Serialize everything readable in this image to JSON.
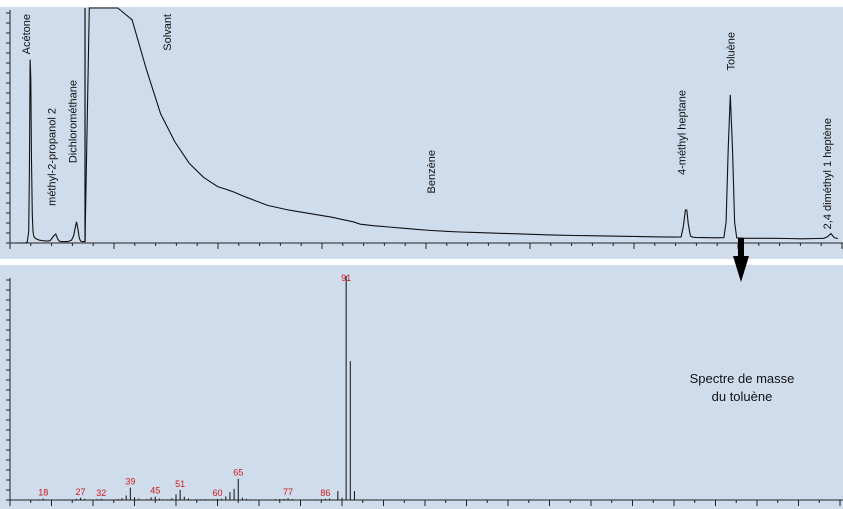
{
  "chart_data": [
    {
      "type": "line",
      "title": "",
      "xlabel": "",
      "ylabel": "",
      "grid": false,
      "x": [
        0,
        1.1,
        1.3,
        1.5,
        1.6,
        1.7,
        1.8,
        1.9,
        2.0,
        2.1,
        2.2,
        2.4,
        2.7,
        3.0,
        3.5,
        4.0,
        4.5,
        5.0,
        5.3,
        5.6,
        5.8,
        6.0,
        6.5,
        7.0,
        7.5,
        7.8,
        8.0,
        8.2,
        8.4,
        8.6,
        8.8,
        9.0,
        9.2,
        9.4,
        10,
        11,
        12,
        13,
        14,
        16,
        18,
        20,
        22,
        24,
        26,
        27,
        28,
        29,
        30,
        32,
        35,
        38,
        40,
        44,
        47,
        48,
        50,
        52,
        54,
        56,
        58,
        60,
        62,
        64,
        66,
        68,
        70,
        72,
        74,
        76,
        78,
        80,
        82,
        84,
        86,
        88,
        90,
        92,
        93,
        93.3,
        93.6,
        93.8,
        94.0,
        94.3,
        94.6,
        95,
        96,
        98,
        99,
        99.3,
        99.6,
        99.9,
        100.2,
        100.5,
        100.8,
        101,
        101.5,
        102,
        104,
        106,
        108,
        110,
        112,
        113,
        113.5,
        114,
        114.5,
        115
      ],
      "y": [
        0,
        0.0,
        0.5,
        5,
        30,
        78,
        70,
        35,
        12,
        5,
        3,
        2.0,
        1.6,
        1.2,
        1.0,
        0.8,
        1.0,
        3.0,
        3.8,
        1.5,
        0.8,
        0.6,
        0.6,
        0.6,
        1.2,
        3,
        6,
        9,
        6,
        2,
        0.8,
        0.6,
        0.6,
        0.6,
        100,
        100,
        100,
        100,
        100,
        95,
        74,
        55,
        43,
        34,
        28,
        26,
        24,
        23,
        22,
        19.5,
        16,
        14,
        13,
        11,
        9,
        8,
        7.3,
        6.8,
        6.3,
        5.8,
        5.3,
        5.0,
        4.7,
        4.5,
        4.3,
        4.1,
        3.9,
        3.7,
        3.5,
        3.3,
        3.2,
        3.1,
        3.0,
        2.9,
        2.8,
        2.7,
        2.6,
        2.5,
        2.6,
        7,
        14,
        14,
        8,
        3,
        2.5,
        2.4,
        2.3,
        2.2,
        2.3,
        9,
        40,
        63,
        40,
        9,
        2.2,
        2.1,
        2.1,
        2.0,
        2.0,
        2.0,
        1.9,
        1.8,
        1.9,
        2.0,
        2.6,
        4.0,
        2.2,
        1.9
      ],
      "xlim": [
        0,
        115
      ],
      "ylim": [
        0,
        100
      ],
      "peak_labels": [
        {
          "text": "Acétone",
          "x": 1.7
        },
        {
          "text": "méthyl-2-propanol 2",
          "x": 5.3
        },
        {
          "text": "Dichlorométhane",
          "x": 8.2
        },
        {
          "text": "Solvant",
          "x": 21.5
        },
        {
          "text": "Benzène",
          "x": 58.5
        },
        {
          "text": "4-méthyl heptane",
          "x": 93.6
        },
        {
          "text": "Toluène",
          "x": 100.5
        },
        {
          "text": "2,4 diméthyl 1 heptène",
          "x": 114
        }
      ]
    },
    {
      "type": "bar",
      "title": "Spectre de masse du toluène",
      "xlabel": "",
      "ylabel": "",
      "grid": false,
      "x": [
        17,
        18,
        26,
        27,
        28,
        31,
        32,
        36,
        37,
        38,
        39,
        40,
        41,
        43,
        44,
        45,
        46,
        47,
        48,
        49,
        50,
        51,
        52,
        53,
        55,
        56,
        57,
        58,
        59,
        60,
        61,
        62,
        63,
        64,
        65,
        66,
        67,
        68,
        74,
        75,
        76,
        77,
        78,
        84,
        85,
        86,
        87,
        89,
        90,
        91,
        92,
        93
      ],
      "values": [
        0.3,
        0.6,
        0.5,
        1.0,
        0.5,
        0.4,
        0.5,
        0.4,
        0.8,
        2.0,
        5.5,
        1.2,
        0.6,
        0.4,
        1.2,
        1.5,
        0.6,
        0.3,
        0.3,
        0.8,
        2.5,
        4.5,
        1.5,
        0.7,
        0.3,
        0.3,
        0.4,
        0.3,
        0.3,
        0.5,
        0.6,
        1.6,
        3.5,
        5.0,
        9.5,
        1.0,
        0.5,
        0.3,
        0.4,
        0.4,
        0.5,
        0.8,
        0.4,
        0.3,
        0.3,
        0.5,
        0.6,
        4.0,
        1.0,
        100,
        62,
        4.0
      ],
      "labels": [
        {
          "text": "18",
          "x": 18
        },
        {
          "text": "27",
          "x": 27
        },
        {
          "text": "32",
          "x": 32
        },
        {
          "text": "39",
          "x": 39
        },
        {
          "text": "45",
          "x": 45
        },
        {
          "text": "51",
          "x": 51
        },
        {
          "text": "60",
          "x": 60
        },
        {
          "text": "65",
          "x": 65
        },
        {
          "text": "77",
          "x": 77
        },
        {
          "text": "86",
          "x": 86
        },
        {
          "text": "91",
          "x": 91
        }
      ],
      "xlim": [
        10,
        210
      ],
      "ylim": [
        0,
        100
      ]
    }
  ],
  "caption": {
    "line1": "Spectre de masse",
    "line2": "du toluène"
  },
  "colors": {
    "panel": "#cfdcec",
    "trace": "#111111",
    "ms_label": "#d01818",
    "arrow": "#000000"
  }
}
